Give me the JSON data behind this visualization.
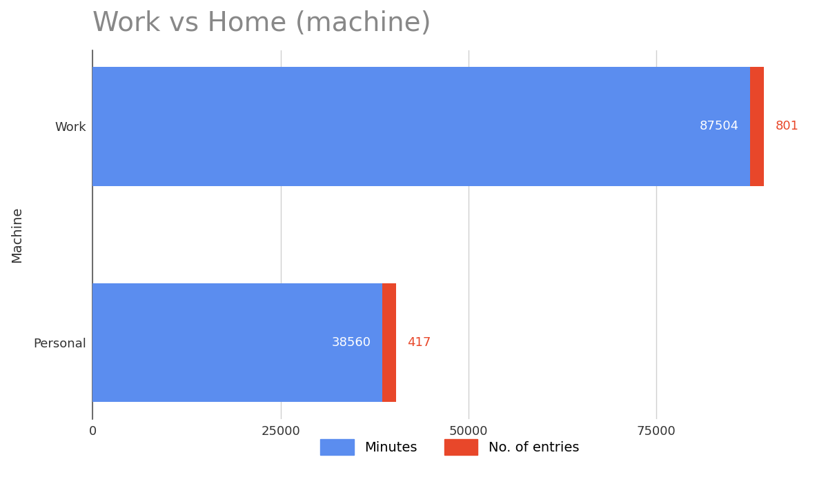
{
  "title": "Work vs Home (machine)",
  "title_fontsize": 28,
  "title_color": "#888888",
  "categories": [
    "Work",
    "Personal"
  ],
  "minutes": [
    87504,
    38560
  ],
  "entries": [
    801,
    417
  ],
  "minutes_color": "#5B8DEF",
  "entries_color": "#E8472A",
  "bar_height": 0.55,
  "ylabel": "Machine",
  "ylabel_fontsize": 14,
  "tick_fontsize": 13,
  "label_fontsize": 13,
  "background_color": "#ffffff",
  "grid_color": "#d0d0d0",
  "xlim": [
    0,
    95000
  ],
  "xticks": [
    0,
    25000,
    50000,
    75000
  ],
  "legend_labels": [
    "Minutes",
    "No. of entries"
  ],
  "legend_colors": [
    "#5B8DEF",
    "#E8472A"
  ],
  "red_bar_width": 1800
}
